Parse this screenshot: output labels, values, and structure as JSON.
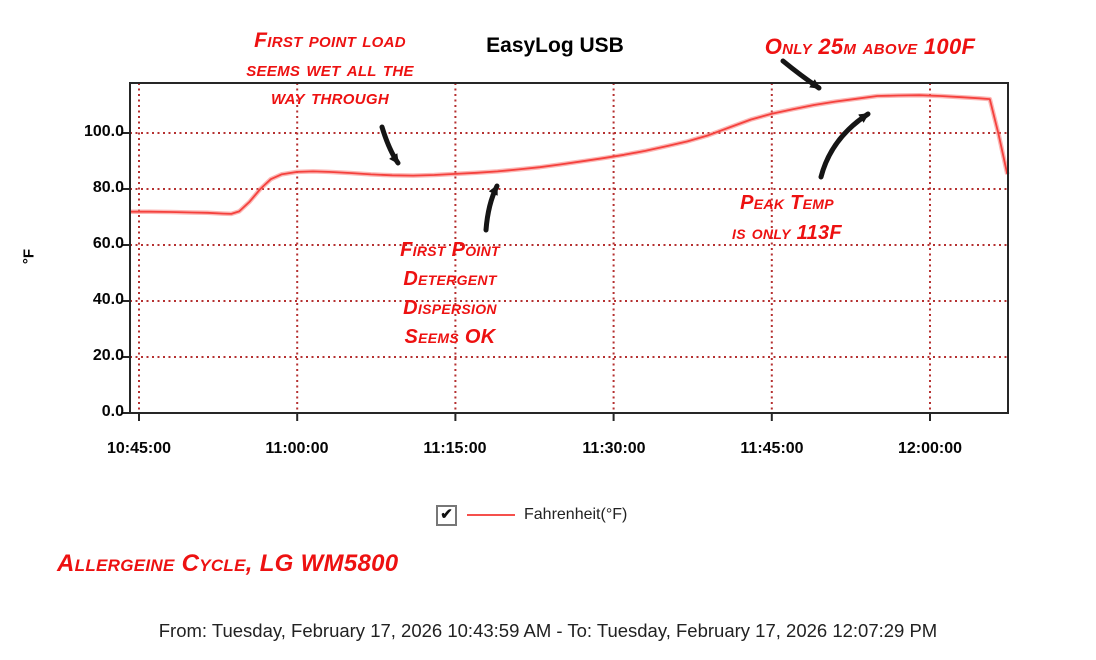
{
  "header": {
    "title": "EasyLog USB"
  },
  "annotations": {
    "wet_load": {
      "lines": [
        "First point load",
        "seems wet all the",
        "way through"
      ]
    },
    "above_100": {
      "text": "Only 25m above 100F"
    },
    "detergent": {
      "lines": [
        "First Point",
        "Detergent",
        "Dispersion",
        "Seems OK"
      ]
    },
    "peak_temp": {
      "lines": [
        "Peak Temp",
        "is only 113F"
      ]
    },
    "cycle": {
      "text": "Allergeine Cycle, LG WM5800"
    }
  },
  "chart_data": {
    "type": "line",
    "title": "EasyLog USB",
    "ylabel": "°F",
    "ylim": [
      0,
      118
    ],
    "xlim": [
      "10:44:09",
      "12:07:24"
    ],
    "grid": "dotted",
    "grid_color": "#b53030",
    "y_ticks": [
      {
        "value": 100,
        "label": "100.0"
      },
      {
        "value": 80,
        "label": "80.0"
      },
      {
        "value": 60,
        "label": "60.0"
      },
      {
        "value": 40,
        "label": "40.0"
      },
      {
        "value": 20,
        "label": "20.0"
      },
      {
        "value": 0,
        "label": "0.0"
      }
    ],
    "x_ticks": [
      {
        "time": "10:45:00",
        "label": "10:45:00"
      },
      {
        "time": "11:00:00",
        "label": "11:00:00"
      },
      {
        "time": "11:15:00",
        "label": "11:15:00"
      },
      {
        "time": "11:30:00",
        "label": "11:30:00"
      },
      {
        "time": "11:45:00",
        "label": "11:45:00"
      },
      {
        "time": "12:00:00",
        "label": "12:00:00"
      }
    ],
    "series": [
      {
        "name": "Fahrenheit(°F)",
        "color": "#f5413d",
        "points": [
          [
            "10:44:09",
            71.9
          ],
          [
            "10:46:00",
            71.9
          ],
          [
            "10:48:00",
            71.8
          ],
          [
            "10:50:00",
            71.6
          ],
          [
            "10:51:30",
            71.5
          ],
          [
            "10:53:00",
            71.2
          ],
          [
            "10:53:45",
            71.1
          ],
          [
            "10:54:30",
            72.0
          ],
          [
            "10:55:30",
            75.5
          ],
          [
            "10:56:30",
            80.0
          ],
          [
            "10:57:30",
            83.5
          ],
          [
            "10:58:30",
            85.2
          ],
          [
            "11:00:00",
            86.1
          ],
          [
            "11:01:30",
            86.3
          ],
          [
            "11:03:00",
            86.1
          ],
          [
            "11:05:00",
            85.7
          ],
          [
            "11:07:00",
            85.2
          ],
          [
            "11:09:00",
            84.9
          ],
          [
            "11:11:00",
            84.8
          ],
          [
            "11:13:00",
            85.0
          ],
          [
            "11:15:00",
            85.4
          ],
          [
            "11:17:00",
            85.8
          ],
          [
            "11:19:00",
            86.3
          ],
          [
            "11:21:00",
            87.0
          ],
          [
            "11:23:00",
            87.8
          ],
          [
            "11:25:00",
            88.8
          ],
          [
            "11:27:00",
            89.9
          ],
          [
            "11:29:00",
            91.0
          ],
          [
            "11:31:00",
            92.2
          ],
          [
            "11:33:00",
            93.6
          ],
          [
            "11:35:00",
            95.3
          ],
          [
            "11:37:00",
            97.0
          ],
          [
            "11:39:00",
            99.2
          ],
          [
            "11:41:00",
            102.0
          ],
          [
            "11:43:00",
            104.8
          ],
          [
            "11:45:00",
            106.9
          ],
          [
            "11:47:00",
            108.5
          ],
          [
            "11:49:00",
            110.0
          ],
          [
            "11:51:00",
            111.2
          ],
          [
            "11:53:00",
            112.2
          ],
          [
            "11:55:00",
            113.2
          ],
          [
            "11:57:00",
            113.4
          ],
          [
            "11:59:00",
            113.5
          ],
          [
            "12:01:00",
            113.2
          ],
          [
            "12:03:00",
            112.8
          ],
          [
            "12:04:40",
            112.4
          ],
          [
            "12:05:40",
            112.1
          ],
          [
            "12:06:30",
            99.5
          ],
          [
            "12:07:20",
            85.3
          ]
        ]
      }
    ]
  },
  "legend": {
    "checked": true,
    "checkmark": "✔",
    "label": "Fahrenheit(°F)"
  },
  "footer": {
    "range": "From: Tuesday, February 17, 2026 10:43:59 AM  -  To: Tuesday, February 17, 2026 12:07:29 PM"
  }
}
